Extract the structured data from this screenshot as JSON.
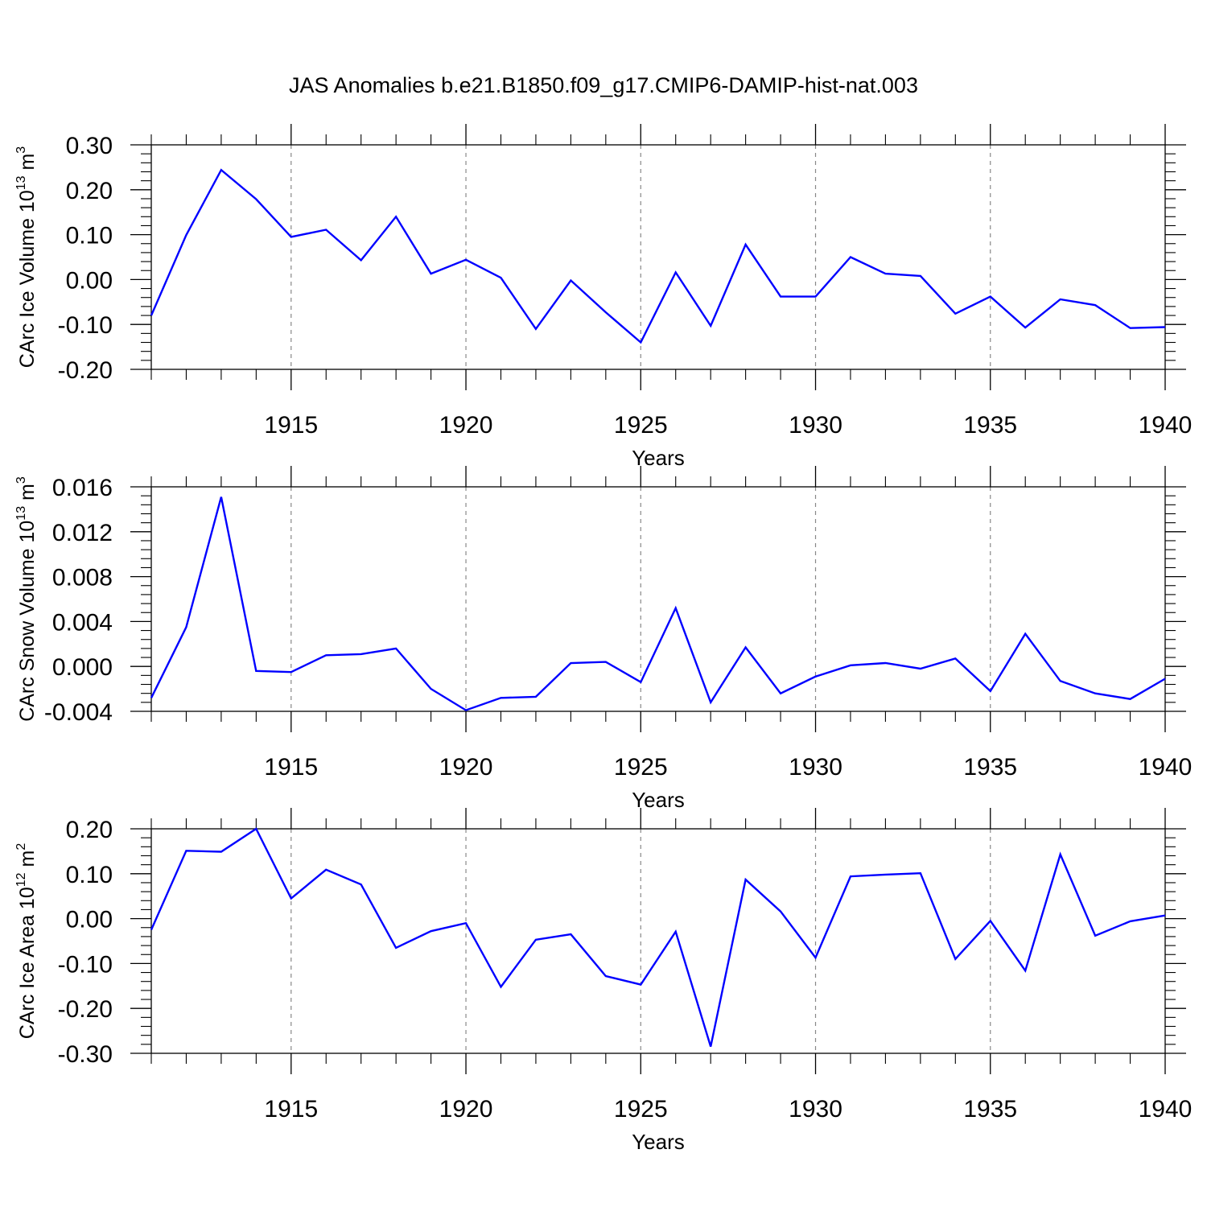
{
  "title": "JAS Anomalies b.e21.B1850.f09_g17.CMIP6-DAMIP-hist-nat.003",
  "colors": {
    "line": "#0000ff",
    "axis": "#000000",
    "grid": "#888888"
  },
  "chart_data": [
    {
      "type": "line",
      "ylabel": {
        "main": "CArc Ice Volume 10",
        "sup": "13",
        "unit": " m",
        "unit_sup": "3"
      },
      "xlabel": "Years",
      "xlim": [
        1911,
        1940
      ],
      "ylim": [
        -0.2,
        0.3
      ],
      "xticks": [
        1915,
        1920,
        1925,
        1930,
        1935,
        1940
      ],
      "yticks": [
        0.3,
        0.2,
        0.1,
        0.0,
        -0.1,
        -0.2
      ],
      "ytick_labels": [
        "0.30",
        "0.20",
        "0.10",
        "0.00",
        "-0.10",
        "-0.20"
      ],
      "grid": "vertical dashed at major x ticks",
      "x": [
        1911,
        1912,
        1913,
        1914,
        1915,
        1916,
        1917,
        1918,
        1919,
        1920,
        1921,
        1922,
        1923,
        1924,
        1925,
        1926,
        1927,
        1928,
        1929,
        1930,
        1931,
        1932,
        1933,
        1934,
        1935,
        1936,
        1937,
        1938,
        1939,
        1940
      ],
      "series": [
        {
          "values": [
            -0.08,
            0.099,
            0.244,
            0.179,
            0.095,
            0.111,
            0.043,
            0.14,
            0.013,
            0.044,
            0.004,
            -0.11,
            -0.002,
            -0.073,
            -0.14,
            0.016,
            -0.103,
            0.078,
            -0.038,
            -0.038,
            0.05,
            0.013,
            0.008,
            -0.076,
            -0.038,
            -0.107,
            -0.044,
            -0.057,
            -0.108,
            -0.106
          ]
        }
      ]
    },
    {
      "type": "line",
      "ylabel": {
        "main": "CArc Snow Volume 10",
        "sup": "13",
        "unit": " m",
        "unit_sup": "3"
      },
      "xlabel": "Years",
      "xlim": [
        1911,
        1940
      ],
      "ylim": [
        -0.004,
        0.016
      ],
      "xticks": [
        1915,
        1920,
        1925,
        1930,
        1935,
        1940
      ],
      "yticks": [
        0.016,
        0.012,
        0.008,
        0.004,
        0.0,
        -0.004
      ],
      "ytick_labels": [
        "0.016",
        "0.012",
        "0.008",
        "0.004",
        "0.000",
        "-0.004"
      ],
      "grid": "vertical dashed at major x ticks",
      "x": [
        1911,
        1912,
        1913,
        1914,
        1915,
        1916,
        1917,
        1918,
        1919,
        1920,
        1921,
        1922,
        1923,
        1924,
        1925,
        1926,
        1927,
        1928,
        1929,
        1930,
        1931,
        1932,
        1933,
        1934,
        1935,
        1936,
        1937,
        1938,
        1939,
        1940
      ],
      "series": [
        {
          "values": [
            -0.0028,
            0.0035,
            0.0151,
            -0.0004,
            -0.0005,
            0.001,
            0.0011,
            0.0016,
            -0.002,
            -0.0039,
            -0.0028,
            -0.0027,
            0.0003,
            0.0004,
            -0.0014,
            0.0052,
            -0.0032,
            0.0017,
            -0.0024,
            -0.0009,
            0.0001,
            0.0003,
            -0.0002,
            0.0007,
            -0.0022,
            0.0029,
            -0.0013,
            -0.0024,
            -0.0029,
            -0.0011
          ]
        }
      ]
    },
    {
      "type": "line",
      "ylabel": {
        "main": "CArc Ice Area 10",
        "sup": "12",
        "unit": " m",
        "unit_sup": "2"
      },
      "xlabel": "Years",
      "xlim": [
        1911,
        1940
      ],
      "ylim": [
        -0.3,
        0.2
      ],
      "xticks": [
        1915,
        1920,
        1925,
        1930,
        1935,
        1940
      ],
      "yticks": [
        0.2,
        0.1,
        0.0,
        -0.1,
        -0.2,
        -0.3
      ],
      "ytick_labels": [
        "0.20",
        "0.10",
        "0.00",
        "-0.10",
        "-0.20",
        "-0.30"
      ],
      "grid": "vertical dashed at major x ticks",
      "x": [
        1911,
        1912,
        1913,
        1914,
        1915,
        1916,
        1917,
        1918,
        1919,
        1920,
        1921,
        1922,
        1923,
        1924,
        1925,
        1926,
        1927,
        1928,
        1929,
        1930,
        1931,
        1932,
        1933,
        1934,
        1935,
        1936,
        1937,
        1938,
        1939,
        1940
      ],
      "series": [
        {
          "values": [
            -0.025,
            0.151,
            0.149,
            0.2,
            0.045,
            0.109,
            0.076,
            -0.065,
            -0.028,
            -0.01,
            -0.152,
            -0.047,
            -0.035,
            -0.128,
            -0.147,
            -0.029,
            -0.285,
            0.087,
            0.016,
            -0.087,
            0.094,
            0.098,
            0.101,
            -0.09,
            -0.005,
            -0.116,
            0.143,
            -0.038,
            -0.006,
            0.007
          ]
        }
      ]
    }
  ]
}
